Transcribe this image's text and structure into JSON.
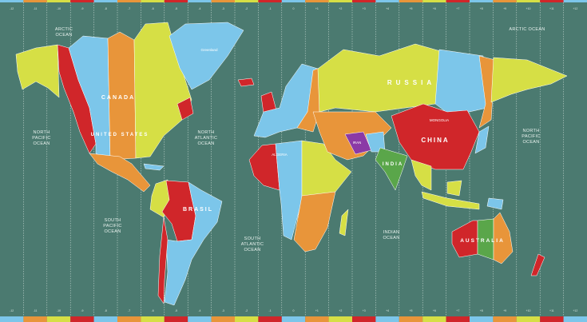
{
  "colors": {
    "ocean": "#4b7a70",
    "blue": "#7cc6ea",
    "yellow": "#d6df45",
    "orange": "#e8953a",
    "red": "#d0262a",
    "green": "#5aa64a",
    "purple": "#8b3aa6"
  },
  "strip_colors": [
    "#7cc6ea",
    "#e8953a",
    "#d6df45",
    "#d0262a"
  ],
  "time_zones": [
    "-12",
    "-11",
    "-10",
    "-9",
    "-8",
    "-7",
    "-6",
    "-5",
    "-4",
    "-3",
    "-2",
    "-1",
    "0",
    "+1",
    "+2",
    "+3",
    "+4",
    "+5",
    "+6",
    "+7",
    "+8",
    "+9",
    "+10",
    "+11",
    "+12"
  ],
  "oceans": {
    "arctic_west": [
      "ARCTIC",
      "OCEAN"
    ],
    "arctic_east": "ARCTIC  OCEAN",
    "north_pacific_west": [
      "NORTH",
      "PACIFIC",
      "OCEAN"
    ],
    "north_pacific_east": [
      "NORTH",
      "PACIFIC",
      "OCEAN"
    ],
    "north_atlantic": [
      "NORTH",
      "ATLANTIC",
      "OCEAN"
    ],
    "south_pacific": [
      "SOUTH",
      "PACIFIC",
      "OCEAN"
    ],
    "south_atlantic": [
      "SOUTH",
      "ATLANTIC",
      "OCEAN"
    ],
    "indian": [
      "INDIAN",
      "OCEAN"
    ]
  },
  "countries": {
    "canada": "CANADA",
    "united_states": "UNITED STATES",
    "brasil": "BRASIL",
    "russia": "RUSSIA",
    "china": "CHINA",
    "mongolia": "MONGOLIA",
    "india": "INDIA",
    "iran": "IRAN",
    "algeria": "ALGERIA",
    "australia": "AUSTRALIA",
    "greenland": "Greenland"
  }
}
